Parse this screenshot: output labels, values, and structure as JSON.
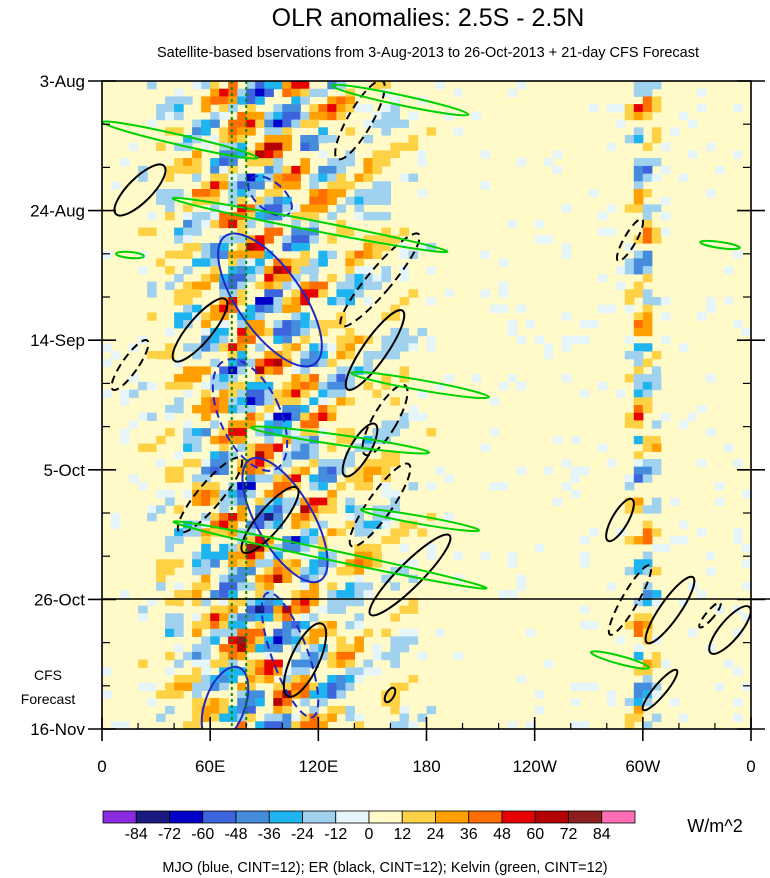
{
  "chart_data": {
    "type": "heatmap",
    "title": "OLR anomalies: 2.5S - 2.5N",
    "subtitle": "Satellite-based bservations from 3-Aug-2013 to 26-Oct-2013 + 21-day CFS Forecast",
    "x_ticks": [
      "0",
      "60E",
      "120E",
      "180",
      "120W",
      "60W",
      "0"
    ],
    "x_range_deg_east": [
      0,
      360
    ],
    "y_ticks": [
      "3-Aug",
      "24-Aug",
      "14-Sep",
      "5-Oct",
      "26-Oct",
      "16-Nov"
    ],
    "y_range_days_from_3_aug": [
      0,
      105
    ],
    "forecast_label": [
      "CFS",
      "Forecast"
    ],
    "forecast_start": "26-Oct",
    "colorbar": {
      "labels": [
        "-84",
        "-72",
        "-60",
        "-48",
        "-36",
        "-24",
        "-12",
        "0",
        "12",
        "24",
        "36",
        "48",
        "60",
        "72",
        "84"
      ],
      "units": "W/m^2",
      "colors": [
        "#8a2be2",
        "#1a1a80",
        "#0000c8",
        "#3c64dc",
        "#468cdc",
        "#1eb4f0",
        "#a0d2f0",
        "#e6f5fa",
        "#fffac8",
        "#ffd246",
        "#ffa000",
        "#ff6e00",
        "#e60000",
        "#b40000",
        "#8c1e1e",
        "#ff6eb4"
      ]
    },
    "footer": "MJO (blue, CINT=12); ER (black, CINT=12); Kelvin (green, CINT=12)",
    "reference_lon_deg_east": [
      72,
      80
    ]
  }
}
